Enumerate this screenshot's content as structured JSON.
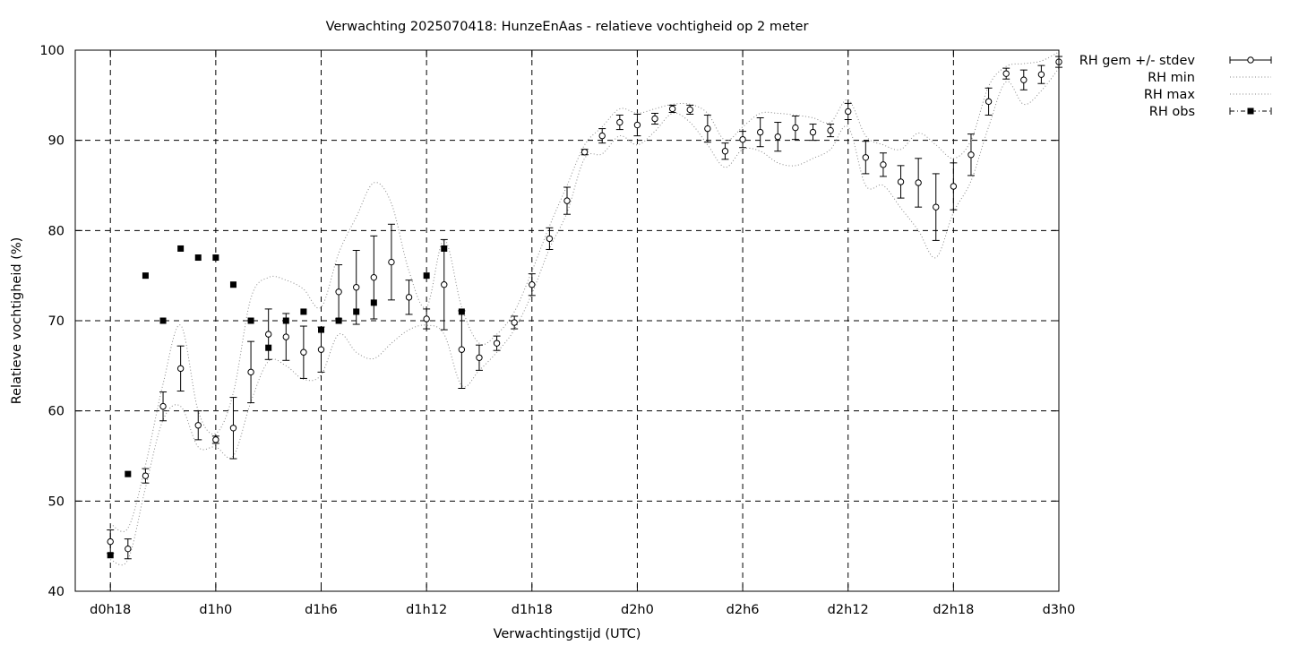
{
  "chart_data": {
    "type": "line",
    "title": "Verwachting 2025070418: HunzeEnAas - relatieve vochtigheid op 2 meter",
    "xlabel": "Verwachtingstijd (UTC)",
    "ylabel": "Relatieve vochtigheid (%)",
    "ylim": [
      40,
      100
    ],
    "xlim_hours": [
      -2,
      54
    ],
    "x_ticks": [
      {
        "hour": 0,
        "label": "d0h18"
      },
      {
        "hour": 6,
        "label": "d1h0"
      },
      {
        "hour": 12,
        "label": "d1h6"
      },
      {
        "hour": 18,
        "label": "d1h12"
      },
      {
        "hour": 24,
        "label": "d1h18"
      },
      {
        "hour": 30,
        "label": "d2h0"
      },
      {
        "hour": 36,
        "label": "d2h6"
      },
      {
        "hour": 42,
        "label": "d2h12"
      },
      {
        "hour": 48,
        "label": "d2h18"
      },
      {
        "hour": 54,
        "label": "d3h0"
      }
    ],
    "y_ticks": [
      40,
      50,
      60,
      70,
      80,
      90,
      100
    ],
    "grid": true,
    "legend_position": "outside-top-right",
    "legend": [
      {
        "label": "RH gem +/- stdev",
        "style": "errorbar"
      },
      {
        "label": "RH min",
        "style": "dotted"
      },
      {
        "label": "RH max",
        "style": "dotted"
      },
      {
        "label": "RH obs",
        "style": "square-dashdot"
      }
    ],
    "x_hours": [
      0,
      1,
      2,
      3,
      4,
      5,
      6,
      7,
      8,
      9,
      10,
      11,
      12,
      13,
      14,
      15,
      16,
      17,
      18,
      19,
      20,
      21,
      22,
      23,
      24,
      25,
      26,
      27,
      28,
      29,
      30,
      31,
      32,
      33,
      34,
      35,
      36,
      37,
      38,
      39,
      40,
      41,
      42,
      43,
      44,
      45,
      46,
      47,
      48,
      49,
      50,
      51,
      52,
      53,
      54
    ],
    "series": [
      {
        "name": "RH gem +/- stdev",
        "mean": [
          45.5,
          44.7,
          52.8,
          60.5,
          64.7,
          58.4,
          56.8,
          58.1,
          64.3,
          68.5,
          68.2,
          66.5,
          66.8,
          73.2,
          73.7,
          74.8,
          76.5,
          72.6,
          70.2,
          74.0,
          66.8,
          65.9,
          67.5,
          69.8,
          74.0,
          79.1,
          83.3,
          88.7,
          90.5,
          92.0,
          91.7,
          92.4,
          93.5,
          93.4,
          91.3,
          88.8,
          90.1,
          90.9,
          90.4,
          91.4,
          90.9,
          91.1,
          93.2,
          88.1,
          87.3,
          85.4,
          85.3,
          82.6,
          84.9,
          88.4,
          94.3,
          97.4,
          96.7,
          97.3,
          98.7
        ],
        "stdev": [
          1.3,
          1.1,
          0.8,
          1.6,
          2.5,
          1.6,
          0.4,
          3.4,
          3.4,
          2.8,
          2.6,
          2.9,
          2.5,
          3.0,
          4.1,
          4.6,
          4.2,
          1.9,
          1.1,
          5.0,
          4.3,
          1.4,
          0.8,
          0.7,
          1.2,
          1.2,
          1.5,
          0.3,
          0.8,
          0.8,
          1.2,
          0.6,
          0.4,
          0.5,
          1.5,
          0.9,
          0.9,
          1.6,
          1.6,
          1.3,
          0.9,
          0.7,
          0.9,
          1.8,
          1.3,
          1.8,
          2.7,
          3.7,
          2.6,
          2.3,
          1.5,
          0.6,
          1.1,
          1.0,
          0.6
        ]
      },
      {
        "name": "RH min",
        "values": [
          43.5,
          43.5,
          51.5,
          59.0,
          60.5,
          56.0,
          56.0,
          55.0,
          61.0,
          65.5,
          65.0,
          63.5,
          64.0,
          68.5,
          66.5,
          65.8,
          67.5,
          69.0,
          69.5,
          68.5,
          62.8,
          64.5,
          66.5,
          69.0,
          73.0,
          78.0,
          82.0,
          88.0,
          88.5,
          90.5,
          89.5,
          91.0,
          93.0,
          92.0,
          89.5,
          87.0,
          89.0,
          88.8,
          87.5,
          87.2,
          88.0,
          89.0,
          91.5,
          85.0,
          85.0,
          82.5,
          80.0,
          77.0,
          82.0,
          85.5,
          91.5,
          96.5,
          94.0,
          95.5,
          98.0
        ]
      },
      {
        "name": "RH max",
        "values": [
          47.5,
          47.0,
          54.0,
          63.0,
          69.5,
          60.0,
          57.5,
          62.0,
          72.5,
          74.8,
          74.5,
          73.5,
          71.5,
          77.5,
          81.5,
          85.3,
          83.0,
          75.5,
          71.5,
          79.0,
          71.5,
          67.5,
          68.5,
          71.0,
          75.5,
          80.5,
          85.0,
          89.5,
          91.5,
          93.5,
          93.0,
          93.5,
          94.0,
          94.0,
          93.0,
          90.0,
          91.5,
          93.0,
          93.0,
          92.8,
          92.5,
          92.0,
          94.5,
          90.5,
          89.5,
          89.0,
          90.8,
          89.5,
          88.0,
          90.0,
          96.0,
          98.2,
          98.5,
          98.8,
          99.8
        ]
      },
      {
        "name": "RH obs",
        "values": [
          44,
          53,
          75,
          70,
          78,
          77,
          77,
          74,
          70,
          67,
          70,
          71,
          69,
          70,
          71,
          72,
          null,
          null,
          75,
          78,
          71,
          null,
          null,
          null,
          null,
          null,
          null,
          null,
          null,
          null,
          null,
          null,
          null,
          null,
          null,
          null,
          null,
          null,
          null,
          null,
          null,
          null,
          null,
          null,
          null,
          null,
          null,
          null,
          null,
          null,
          null,
          null,
          null,
          null,
          null
        ]
      }
    ]
  }
}
